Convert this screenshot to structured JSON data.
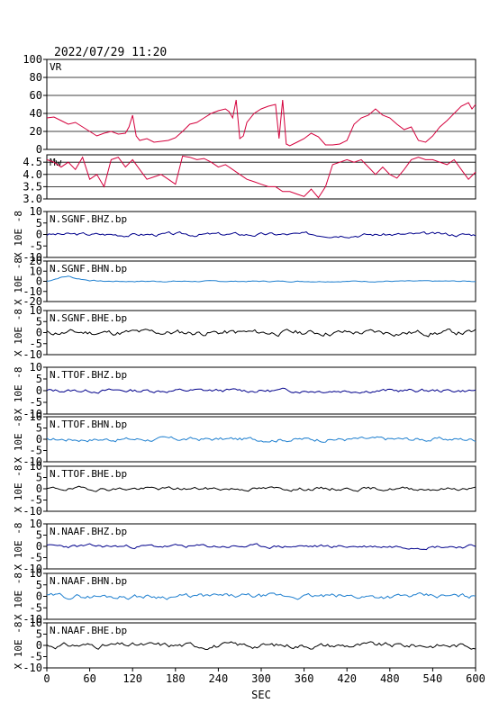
{
  "timestamp": "2022/07/29 11:20",
  "chart_data": {
    "type": "line",
    "xlabel": "SEC",
    "xlim": [
      0,
      600
    ],
    "xticks": [
      0,
      60,
      120,
      180,
      240,
      300,
      360,
      420,
      480,
      540,
      600
    ],
    "panels": [
      {
        "id": "vr",
        "label": "VR",
        "ylim": [
          0,
          100
        ],
        "yticks": [
          0,
          20,
          40,
          60,
          80,
          100
        ],
        "grid": true,
        "color": "#d4003c",
        "series": {
          "x": [
            0,
            10,
            20,
            30,
            40,
            50,
            60,
            70,
            80,
            90,
            100,
            110,
            115,
            120,
            125,
            130,
            140,
            150,
            160,
            170,
            180,
            190,
            200,
            210,
            220,
            230,
            240,
            250,
            255,
            260,
            265,
            270,
            275,
            280,
            290,
            300,
            310,
            320,
            325,
            330,
            335,
            340,
            350,
            360,
            370,
            380,
            390,
            400,
            410,
            420,
            430,
            440,
            450,
            460,
            470,
            480,
            490,
            500,
            510,
            520,
            530,
            540,
            550,
            560,
            570,
            580,
            590,
            595,
            600
          ],
          "y": [
            35,
            36,
            32,
            28,
            30,
            25,
            20,
            15,
            18,
            20,
            17,
            18,
            25,
            38,
            15,
            10,
            12,
            8,
            9,
            10,
            13,
            20,
            28,
            30,
            35,
            40,
            43,
            45,
            42,
            35,
            55,
            12,
            15,
            30,
            40,
            45,
            48,
            50,
            12,
            55,
            6,
            4,
            8,
            12,
            18,
            14,
            5,
            5,
            6,
            10,
            28,
            35,
            38,
            45,
            38,
            35,
            28,
            22,
            25,
            10,
            8,
            15,
            25,
            32,
            40,
            48,
            52,
            45,
            50
          ]
        }
      },
      {
        "id": "mw",
        "label": "Mw",
        "ylim": [
          3.0,
          4.8
        ],
        "yticks": [
          3.0,
          3.5,
          4.0,
          4.5
        ],
        "ytick_labels": [
          "3.0",
          "3.5",
          "4.0",
          "4.5"
        ],
        "grid": true,
        "color": "#d4003c",
        "series": {
          "x": [
            0,
            10,
            20,
            30,
            40,
            50,
            60,
            70,
            80,
            90,
            100,
            110,
            120,
            130,
            140,
            150,
            160,
            170,
            180,
            190,
            200,
            210,
            220,
            230,
            240,
            250,
            260,
            270,
            280,
            290,
            300,
            310,
            320,
            330,
            340,
            350,
            360,
            370,
            380,
            390,
            400,
            410,
            420,
            430,
            440,
            450,
            460,
            470,
            480,
            490,
            500,
            510,
            520,
            530,
            540,
            550,
            560,
            570,
            580,
            590,
            600
          ],
          "y": [
            4.6,
            4.5,
            4.3,
            4.5,
            4.2,
            4.7,
            3.8,
            4.0,
            3.5,
            4.6,
            4.7,
            4.3,
            4.6,
            4.2,
            3.8,
            3.9,
            4.0,
            3.8,
            3.6,
            4.75,
            4.7,
            4.6,
            4.65,
            4.5,
            4.3,
            4.4,
            4.2,
            4.0,
            3.8,
            3.7,
            3.6,
            3.5,
            3.5,
            3.3,
            3.3,
            3.2,
            3.1,
            3.4,
            3.05,
            3.5,
            4.4,
            4.5,
            4.6,
            4.5,
            4.6,
            4.3,
            4.0,
            4.3,
            4.0,
            3.85,
            4.2,
            4.6,
            4.7,
            4.6,
            4.6,
            4.5,
            4.4,
            4.6,
            4.2,
            3.8,
            4.1
          ]
        }
      },
      {
        "id": "sgnf-bhz",
        "label": "N.SGNF.BHZ.bp",
        "ylim": [
          -10,
          10
        ],
        "yticks": [
          -10,
          -5,
          0,
          5,
          10
        ],
        "color": "#00008b",
        "amplitude": 0.6,
        "seed": 3
      },
      {
        "id": "sgnf-bhn",
        "label": "N.SGNF.BHN.bp",
        "ylim": [
          -20,
          20
        ],
        "yticks": [
          -20,
          -10,
          0,
          10,
          20
        ],
        "color": "#1e7fcf",
        "amplitude": 0.4,
        "seed": 7,
        "onset": {
          "x": [
            0,
            10,
            20,
            30,
            40,
            50,
            60,
            70,
            80
          ],
          "y": [
            0,
            2,
            4,
            5,
            3,
            2,
            1,
            0.5,
            0
          ]
        }
      },
      {
        "id": "sgnf-bhe",
        "label": "N.SGNF.BHE.bp",
        "ylim": [
          -10,
          10
        ],
        "yticks": [
          -10,
          -5,
          0,
          5,
          10
        ],
        "color": "#000000",
        "amplitude": 1.0,
        "seed": 11
      },
      {
        "id": "ttof-bhz",
        "label": "N.TTOF.BHZ.bp",
        "ylim": [
          -10,
          10
        ],
        "yticks": [
          -10,
          -5,
          0,
          5,
          10
        ],
        "color": "#00008b",
        "amplitude": 0.6,
        "seed": 13
      },
      {
        "id": "ttof-bhn",
        "label": "N.TTOF.BHN.bp",
        "ylim": [
          -10,
          10
        ],
        "yticks": [
          -10,
          -5,
          0,
          5,
          10
        ],
        "color": "#1e7fcf",
        "amplitude": 0.7,
        "seed": 17
      },
      {
        "id": "ttof-bhe",
        "label": "N.TTOF.BHE.bp",
        "ylim": [
          -10,
          10
        ],
        "yticks": [
          -10,
          -5,
          0,
          5,
          10
        ],
        "color": "#000000",
        "amplitude": 0.6,
        "seed": 19
      },
      {
        "id": "naaf-bhz",
        "label": "N.NAAF.BHZ.bp",
        "ylim": [
          -10,
          10
        ],
        "yticks": [
          -10,
          -5,
          0,
          5,
          10
        ],
        "color": "#00008b",
        "amplitude": 0.6,
        "seed": 23
      },
      {
        "id": "naaf-bhn",
        "label": "N.NAAF.BHN.bp",
        "ylim": [
          -10,
          10
        ],
        "yticks": [
          -10,
          -5,
          0,
          5,
          10
        ],
        "color": "#1e7fcf",
        "amplitude": 0.8,
        "seed": 29
      },
      {
        "id": "naaf-bhe",
        "label": "N.NAAF.BHE.bp",
        "ylim": [
          -10,
          10
        ],
        "yticks": [
          -10,
          -5,
          0,
          5,
          10
        ],
        "color": "#000000",
        "amplitude": 0.9,
        "seed": 31
      }
    ],
    "seismogram_ylabel": "X 10E -8"
  }
}
